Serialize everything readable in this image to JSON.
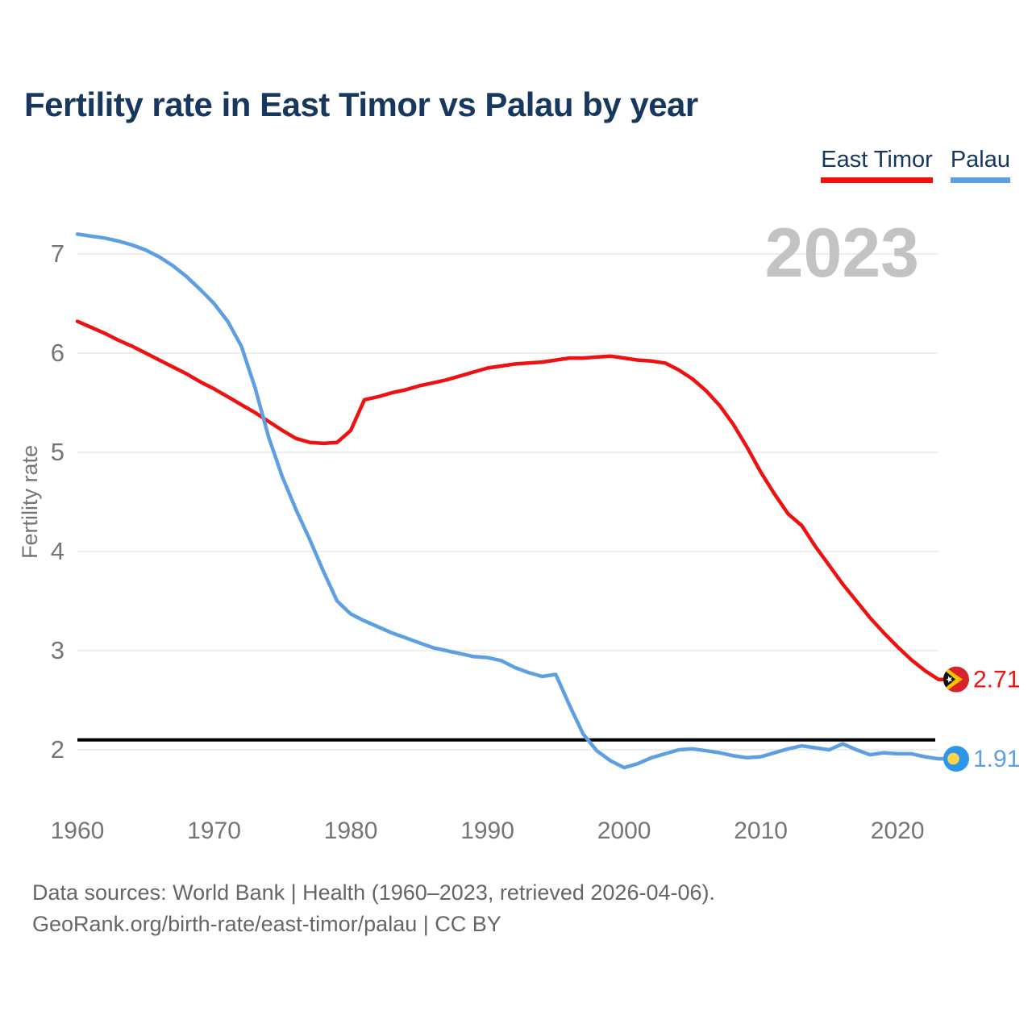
{
  "title": "Fertility rate in East Timor vs Palau by year",
  "watermark": "2023",
  "legend": {
    "items": [
      {
        "label": "East Timor",
        "color": "#ee1111"
      },
      {
        "label": "Palau",
        "color": "#5d9fe2"
      }
    ]
  },
  "chart_data": {
    "type": "line",
    "title": "Fertility rate in East Timor vs Palau by year",
    "xlabel": "",
    "ylabel": "Fertility rate",
    "x_range": [
      1960,
      2023
    ],
    "x_ticks": [
      1960,
      1970,
      1980,
      1990,
      2000,
      2010,
      2020
    ],
    "y_ticks": [
      7,
      6,
      5,
      4,
      3,
      2
    ],
    "grid": true,
    "legend_position": "top-right",
    "reference_line": {
      "value": 2.1,
      "color": "#000000"
    },
    "x": [
      1960,
      1961,
      1962,
      1963,
      1964,
      1965,
      1966,
      1967,
      1968,
      1969,
      1970,
      1971,
      1972,
      1973,
      1974,
      1975,
      1976,
      1977,
      1978,
      1979,
      1980,
      1981,
      1982,
      1983,
      1984,
      1985,
      1986,
      1987,
      1988,
      1989,
      1990,
      1991,
      1992,
      1993,
      1994,
      1995,
      1996,
      1997,
      1998,
      1999,
      2000,
      2001,
      2002,
      2003,
      2004,
      2005,
      2006,
      2007,
      2008,
      2009,
      2010,
      2011,
      2012,
      2013,
      2014,
      2015,
      2016,
      2017,
      2018,
      2019,
      2020,
      2021,
      2022,
      2023
    ],
    "series": [
      {
        "name": "East Timor",
        "color": "#ee1111",
        "end_label": "2.71",
        "end_value": 2.71,
        "flag": "east-timor",
        "values": [
          6.32,
          6.26,
          6.2,
          6.13,
          6.07,
          6.0,
          5.93,
          5.86,
          5.79,
          5.71,
          5.64,
          5.56,
          5.48,
          5.4,
          5.31,
          5.22,
          5.14,
          5.1,
          5.09,
          5.1,
          5.22,
          5.53,
          5.56,
          5.6,
          5.63,
          5.67,
          5.7,
          5.73,
          5.77,
          5.81,
          5.85,
          5.87,
          5.89,
          5.9,
          5.91,
          5.93,
          5.95,
          5.95,
          5.96,
          5.97,
          5.95,
          5.93,
          5.92,
          5.9,
          5.83,
          5.74,
          5.62,
          5.47,
          5.28,
          5.05,
          4.8,
          4.58,
          4.38,
          4.26,
          4.05,
          3.86,
          3.67,
          3.5,
          3.33,
          3.18,
          3.04,
          2.91,
          2.8,
          2.71
        ]
      },
      {
        "name": "Palau",
        "color": "#5d9fe2",
        "end_label": "1.91",
        "end_value": 1.91,
        "flag": "palau",
        "values": [
          7.2,
          7.18,
          7.16,
          7.13,
          7.09,
          7.04,
          6.97,
          6.88,
          6.77,
          6.64,
          6.5,
          6.32,
          6.07,
          5.65,
          5.15,
          4.75,
          4.42,
          4.12,
          3.8,
          3.5,
          3.37,
          3.3,
          3.24,
          3.18,
          3.13,
          3.08,
          3.03,
          3.0,
          2.97,
          2.94,
          2.93,
          2.9,
          2.83,
          2.78,
          2.74,
          2.76,
          2.45,
          2.16,
          1.99,
          1.89,
          1.82,
          1.86,
          1.92,
          1.96,
          2.0,
          2.01,
          1.99,
          1.97,
          1.94,
          1.92,
          1.93,
          1.97,
          2.01,
          2.04,
          2.02,
          2.0,
          2.06,
          2.0,
          1.95,
          1.97,
          1.96,
          1.96,
          1.93,
          1.91
        ]
      }
    ]
  },
  "footer": {
    "line1": "Data sources: World Bank | Health (1960–2023, retrieved 2026-04-06).",
    "line2": "GeoRank.org/birth-rate/east-timor/palau | CC BY"
  }
}
